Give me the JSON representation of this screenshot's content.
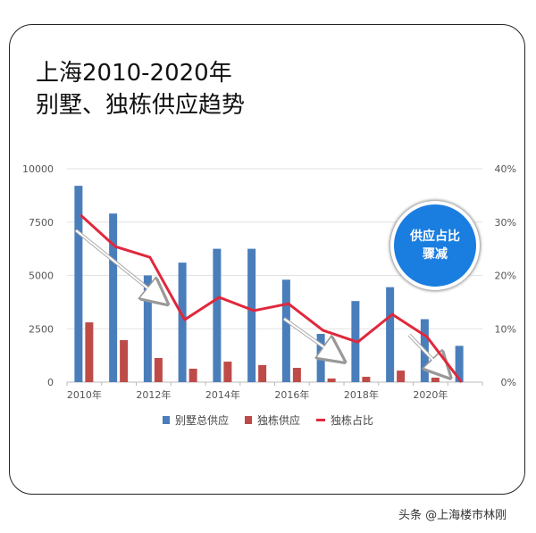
{
  "title_line1": "上海2010-2020年",
  "title_line2": "别墅、独栋供应趋势",
  "badge": {
    "line1": "供应占比",
    "line2": "骤减",
    "color": "#1a7de0"
  },
  "watermark": "头条 @上海楼市林刚",
  "chart_data": {
    "type": "bar+line",
    "categories": [
      "2010年",
      "2011年",
      "2012年",
      "2013年",
      "2014年",
      "2015年",
      "2016年",
      "2017年",
      "2018年",
      "2019年",
      "2020年",
      "2021年"
    ],
    "x_tick_labels": [
      "2010年",
      "2012年",
      "2014年",
      "2016年",
      "2018年",
      "2020年"
    ],
    "left_axis": {
      "ylim": [
        0,
        10000
      ],
      "ticks": [
        "0",
        "2500",
        "5000",
        "7500",
        "10000"
      ]
    },
    "right_axis": {
      "ylim": [
        0,
        40
      ],
      "ticks": [
        "0%",
        "10%",
        "20%",
        "30%",
        "40%"
      ]
    },
    "grid": true,
    "legend_position": "bottom",
    "series": [
      {
        "name": "别墅总供应",
        "type": "bar",
        "axis": "left",
        "color": "#4a7ebb",
        "values": [
          9200,
          7900,
          5000,
          5600,
          6250,
          6250,
          4800,
          2260,
          3800,
          4450,
          2950,
          1700
        ]
      },
      {
        "name": "独栋供应",
        "type": "bar",
        "axis": "left",
        "color": "#be4b48",
        "values": [
          2800,
          1970,
          1130,
          630,
          960,
          800,
          670,
          170,
          250,
          540,
          210,
          0
        ]
      },
      {
        "name": "独栋占比",
        "type": "line",
        "axis": "right",
        "unit": "%",
        "color": "#e0283c",
        "values": [
          31.3,
          25.4,
          23.4,
          11.7,
          15.9,
          13.4,
          14.7,
          9.7,
          7.5,
          12.7,
          8.5,
          0
        ]
      }
    ]
  }
}
